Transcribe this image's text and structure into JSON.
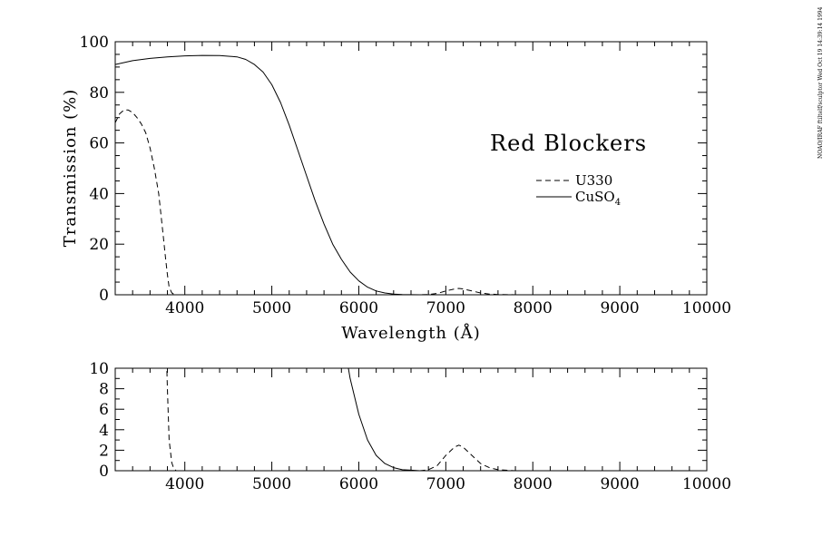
{
  "stamp": "NOAO/IRAF  ftiltelf/sculptor  Wed Oct 19 14:39:14 1994",
  "chart_data": [
    {
      "type": "line",
      "title": "Red Blockers",
      "xlabel": "Wavelength (Å)",
      "ylabel": "Transmission (%)",
      "xlim": [
        3200,
        10000
      ],
      "ylim": [
        0,
        100
      ],
      "x_ticks": [
        4000,
        5000,
        6000,
        7000,
        8000,
        9000,
        10000
      ],
      "y_ticks": [
        0,
        20,
        40,
        60,
        80,
        100
      ],
      "legend_position": "right",
      "series": [
        {
          "name": "U330",
          "style": "dashed",
          "x": [
            3200,
            3250,
            3300,
            3350,
            3400,
            3450,
            3500,
            3550,
            3600,
            3650,
            3700,
            3750,
            3780,
            3800,
            3820,
            3850,
            3870,
            3900,
            3950,
            4000,
            4200,
            4500,
            5000,
            5500,
            6000,
            6500,
            6700,
            6800,
            6900,
            7000,
            7100,
            7150,
            7200,
            7300,
            7400,
            7500,
            7600,
            7800,
            8000,
            8200
          ],
          "y": [
            68,
            71.5,
            73,
            73,
            72,
            70,
            67.5,
            64,
            58,
            50,
            40,
            24,
            14,
            8,
            3,
            0.8,
            0.3,
            0,
            0,
            0,
            0,
            0,
            0,
            0,
            0,
            0,
            0,
            0.1,
            0.5,
            1.5,
            2.3,
            2.5,
            2.3,
            1.5,
            0.7,
            0.3,
            0.1,
            0,
            0,
            0
          ]
        },
        {
          "name": "CuSO4",
          "style": "solid",
          "x": [
            3200,
            3400,
            3600,
            3800,
            4000,
            4200,
            4400,
            4600,
            4700,
            4800,
            4900,
            5000,
            5100,
            5200,
            5300,
            5400,
            5500,
            5600,
            5700,
            5800,
            5900,
            6000,
            6100,
            6200,
            6300,
            6400,
            6500,
            6600,
            6700,
            6800,
            7000,
            7500,
            8000,
            8500,
            8600
          ],
          "y": [
            91,
            92.5,
            93.4,
            94,
            94.4,
            94.6,
            94.5,
            94,
            93,
            91,
            88,
            83,
            76,
            67,
            57,
            47,
            37,
            28,
            20,
            14,
            9,
            5.5,
            3,
            1.5,
            0.7,
            0.3,
            0.1,
            0.05,
            0,
            0,
            0,
            0,
            0,
            0,
            0
          ]
        }
      ]
    },
    {
      "type": "line",
      "title": "",
      "xlabel": "",
      "ylabel": "",
      "xlim": [
        3200,
        10000
      ],
      "ylim": [
        0,
        10
      ],
      "x_ticks": [
        4000,
        5000,
        6000,
        7000,
        8000,
        9000,
        10000
      ],
      "y_ticks": [
        0,
        2,
        4,
        6,
        8,
        10
      ],
      "series": [
        {
          "name": "U330",
          "style": "dashed",
          "ref": 0
        },
        {
          "name": "CuSO4",
          "style": "solid",
          "ref": 1
        }
      ]
    }
  ]
}
